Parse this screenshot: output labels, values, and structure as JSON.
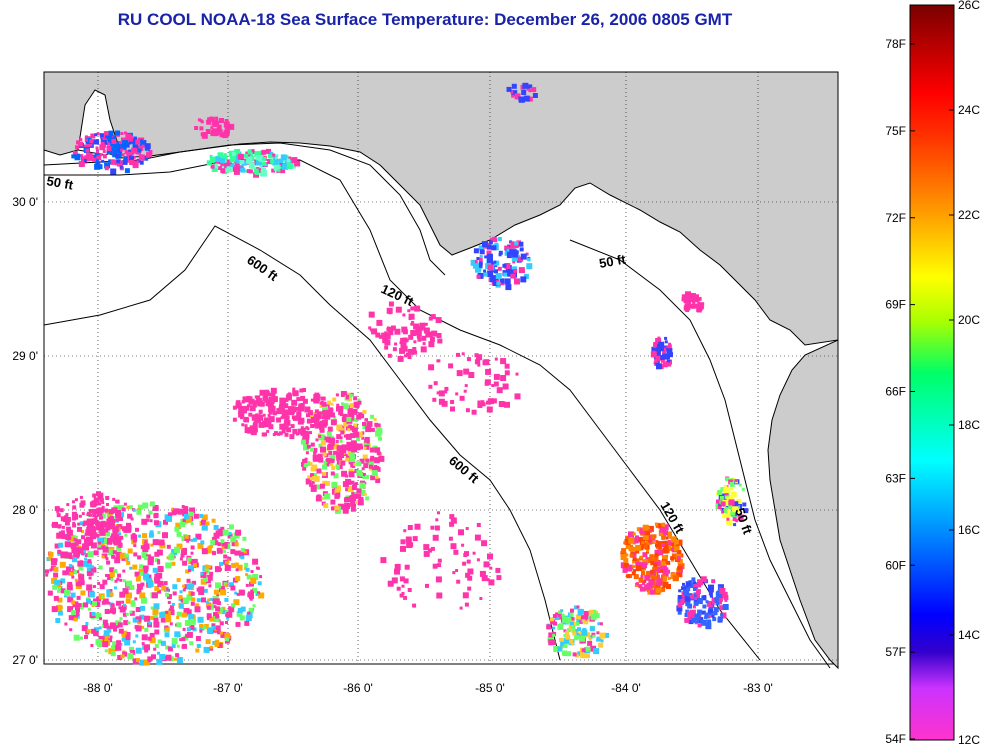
{
  "title": "RU COOL  NOAA-18  Sea Surface Temperature:  December 26, 2006 0805 GMT",
  "lon_labels": [
    "-88 0'",
    "-87 0'",
    "-86 0'",
    "-85 0'",
    "-84 0'",
    "-83 0'"
  ],
  "lat_labels": [
    "30 0'",
    "29 0'",
    "28 0'",
    "27 0'"
  ],
  "contour_labels": [
    "50 ft",
    "600 ft",
    "120 ft",
    "50 ft",
    "600 ft",
    "120 ft",
    "50 ft"
  ],
  "colorbar": {
    "fahrenheit_labels": [
      "78F",
      "75F",
      "72F",
      "69F",
      "66F",
      "63F",
      "60F",
      "57F",
      "54F"
    ],
    "celsius_labels": [
      "26C",
      "24C",
      "22C",
      "20C",
      "18C",
      "16C",
      "14C",
      "12C"
    ],
    "range_c": [
      12,
      26
    ]
  },
  "colors": {
    "title": "#1a22a8",
    "land": "#cccccc",
    "water": "#ffffff",
    "cold": "#ff33aa",
    "hot": "#8b0000"
  }
}
